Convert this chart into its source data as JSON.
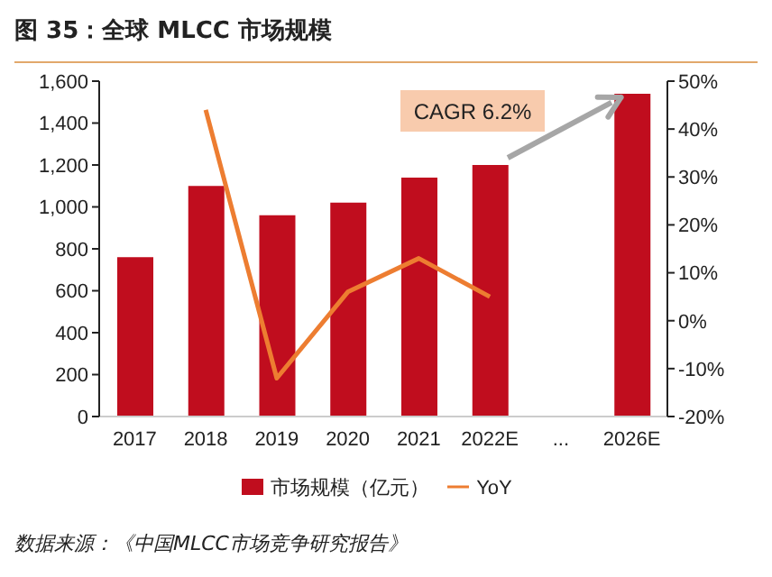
{
  "chart_data": {
    "type": "bar",
    "title": "图 35：全球 MLCC 市场规模",
    "categories": [
      "2017",
      "2018",
      "2019",
      "2020",
      "2021",
      "2022E",
      "...",
      "2026E"
    ],
    "series": [
      {
        "name": "市场规模（亿元）",
        "color": "#c00d1e",
        "values": [
          760,
          1100,
          960,
          1020,
          1140,
          1200,
          null,
          1540
        ]
      },
      {
        "name": "YoY",
        "type": "line",
        "axis": "y2",
        "color": "#ed7d31",
        "values": [
          null,
          44,
          -12,
          6,
          13,
          5,
          null,
          null
        ]
      }
    ],
    "ylim": [
      0,
      1600
    ],
    "yticks": [
      {
        "value": 0,
        "label": "0"
      },
      {
        "value": 200,
        "label": "200"
      },
      {
        "value": 400,
        "label": "400"
      },
      {
        "value": 600,
        "label": "600"
      },
      {
        "value": 800,
        "label": "800"
      },
      {
        "value": 1000,
        "label": "1,000"
      },
      {
        "value": 1200,
        "label": "1,200"
      },
      {
        "value": 1400,
        "label": "1,400"
      },
      {
        "value": 1600,
        "label": "1,600"
      }
    ],
    "y2lim": [
      -20,
      50
    ],
    "y2ticks": [
      {
        "value": -20,
        "label": "-20%"
      },
      {
        "value": -10,
        "label": "-10%"
      },
      {
        "value": 0,
        "label": "0%"
      },
      {
        "value": 10,
        "label": "10%"
      },
      {
        "value": 20,
        "label": "20%"
      },
      {
        "value": 30,
        "label": "30%"
      },
      {
        "value": 40,
        "label": "40%"
      },
      {
        "value": 50,
        "label": "50%"
      }
    ],
    "annotations": [
      "CAGR 6.2%",
      "数据来源：《中国MLCC市场竞争研究报告》"
    ],
    "grid": false,
    "legend": "bottom",
    "marker": "none",
    "line_style": "solid"
  }
}
